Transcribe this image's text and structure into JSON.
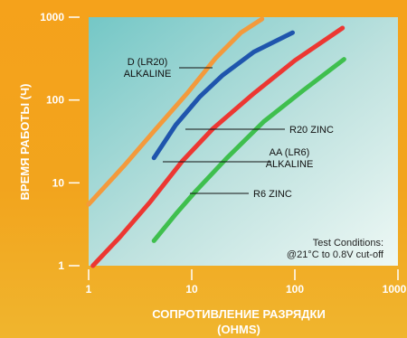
{
  "chart_data": {
    "type": "line",
    "xlabel_line1": "СОПРОТИВЛЕНИЕ РАЗРЯДКИ",
    "xlabel_line2": "(OHMS)",
    "ylabel": "ВРЕМЯ РАБОТЫ (Ч)",
    "x_scale": "log",
    "y_scale": "log",
    "xlim": [
      1,
      1000
    ],
    "ylim": [
      1,
      1000
    ],
    "x_ticks": [
      "1",
      "10",
      "100",
      "1000"
    ],
    "y_ticks": [
      "1",
      "10",
      "100",
      "1000"
    ],
    "grid": false,
    "series": [
      {
        "name_lines": [
          "D (LR20)",
          "ALKALINE"
        ],
        "color": "#f39a3c",
        "x": [
          1,
          2.2,
          4.5,
          9,
          17,
          30,
          48
        ],
        "y": [
          5.5,
          16,
          45,
          120,
          320,
          650,
          950
        ]
      },
      {
        "name_lines": [
          "R20 ZINC"
        ],
        "color": "#1f55ad",
        "x": [
          4.3,
          7,
          12,
          20,
          40,
          95
        ],
        "y": [
          20,
          50,
          110,
          200,
          380,
          650
        ]
      },
      {
        "name_lines": [
          "AA (LR6)",
          "ALKALINE"
        ],
        "color": "#ec3732",
        "x": [
          1.1,
          2,
          4,
          8,
          16,
          40,
          100,
          290
        ],
        "y": [
          1,
          2.2,
          6,
          18,
          45,
          120,
          300,
          740
        ]
      },
      {
        "name_lines": [
          "R6 ZINC"
        ],
        "color": "#3fbf4e",
        "x": [
          4.3,
          7,
          11,
          22,
          50,
          120,
          300
        ],
        "y": [
          2,
          4.2,
          8,
          20,
          55,
          130,
          310
        ]
      }
    ],
    "annotation_lines": [
      "Test Conditions:",
      "@21°C to 0.8V cut-off"
    ]
  }
}
